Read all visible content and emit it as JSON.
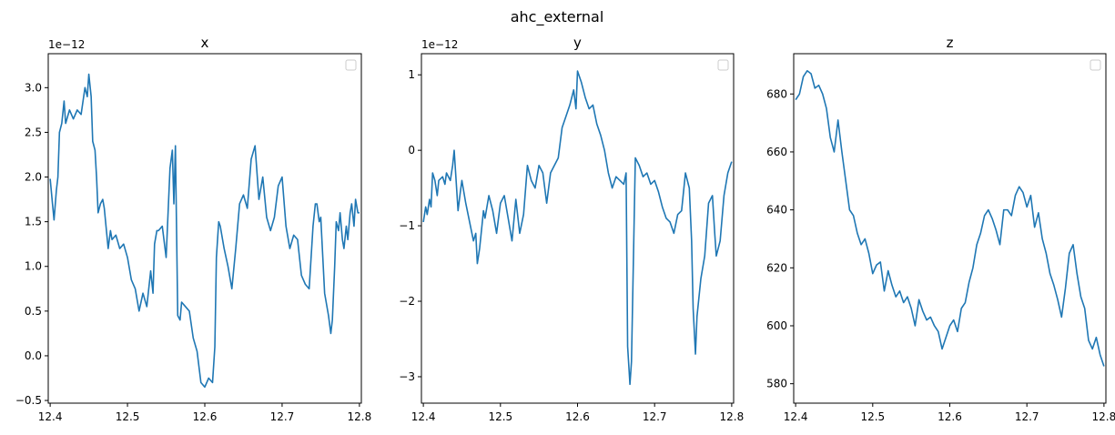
{
  "figure": {
    "suptitle": "ahc_external"
  },
  "colors": {
    "line": "#1f77b4",
    "axes": "#000000",
    "legend_border": "#cccccc"
  },
  "chart_data": [
    {
      "type": "line",
      "title": "x",
      "offset_text": "1e−12",
      "xlim": [
        12.3975,
        12.8025
      ],
      "ylim": [
        -0.53,
        3.38
      ],
      "xticks": [
        12.4,
        12.5,
        12.6,
        12.7,
        12.8
      ],
      "xtick_labels": [
        "12.4",
        "12.5",
        "12.6",
        "12.7",
        "12.8"
      ],
      "yticks": [
        -0.5,
        0.0,
        0.5,
        1.0,
        1.5,
        2.0,
        2.5,
        3.0
      ],
      "ytick_labels": [
        "−0.5",
        "0.0",
        "0.5",
        "1.0",
        "1.5",
        "2.0",
        "2.5",
        "3.0"
      ],
      "legend": "top-right",
      "grid": false,
      "series": [
        {
          "x": [
            12.4,
            12.403,
            12.405,
            12.408,
            12.41,
            12.412,
            12.415,
            12.418,
            12.42,
            12.425,
            12.43,
            12.435,
            12.44,
            12.445,
            12.448,
            12.45,
            12.453,
            12.455,
            12.458,
            12.46,
            12.462,
            12.465,
            12.468,
            12.47,
            12.475,
            12.478,
            12.48,
            12.485,
            12.49,
            12.495,
            12.5,
            12.505,
            12.51,
            12.515,
            12.52,
            12.525,
            12.53,
            12.533,
            12.535,
            12.538,
            12.54,
            12.545,
            12.55,
            12.555,
            12.558,
            12.56,
            12.562,
            12.565,
            12.568,
            12.57,
            12.575,
            12.58,
            12.585,
            12.59,
            12.595,
            12.6,
            12.605,
            12.61,
            12.613,
            12.615,
            12.618,
            12.62,
            12.625,
            12.63,
            12.635,
            12.64,
            12.645,
            12.65,
            12.655,
            12.66,
            12.665,
            12.67,
            12.675,
            12.68,
            12.685,
            12.69,
            12.695,
            12.7,
            12.705,
            12.71,
            12.715,
            12.72,
            12.725,
            12.73,
            12.735,
            12.74,
            12.743,
            12.745,
            12.748,
            12.75,
            12.755,
            12.76,
            12.763,
            12.765,
            12.768,
            12.77,
            12.773,
            12.775,
            12.778,
            12.78,
            12.783,
            12.785,
            12.788,
            12.79,
            12.793,
            12.795,
            12.798,
            12.8
          ],
          "y": [
            1.98,
            1.7,
            1.52,
            1.85,
            2.0,
            2.5,
            2.6,
            2.85,
            2.6,
            2.75,
            2.65,
            2.75,
            2.7,
            3.0,
            2.9,
            3.15,
            2.9,
            2.4,
            2.3,
            2.0,
            1.6,
            1.7,
            1.75,
            1.65,
            1.2,
            1.4,
            1.3,
            1.35,
            1.2,
            1.25,
            1.1,
            0.85,
            0.75,
            0.5,
            0.7,
            0.55,
            0.95,
            0.7,
            1.25,
            1.4,
            1.4,
            1.45,
            1.1,
            2.1,
            2.3,
            1.7,
            2.35,
            0.45,
            0.4,
            0.6,
            0.55,
            0.5,
            0.2,
            0.05,
            -0.3,
            -0.35,
            -0.25,
            -0.3,
            0.1,
            1.1,
            1.5,
            1.45,
            1.2,
            1.0,
            0.75,
            1.2,
            1.7,
            1.8,
            1.65,
            2.2,
            2.35,
            1.75,
            2.0,
            1.55,
            1.4,
            1.55,
            1.9,
            2.0,
            1.45,
            1.2,
            1.35,
            1.3,
            0.9,
            0.8,
            0.75,
            1.45,
            1.7,
            1.7,
            1.5,
            1.55,
            0.7,
            0.45,
            0.25,
            0.4,
            1.0,
            1.5,
            1.4,
            1.6,
            1.3,
            1.2,
            1.45,
            1.3,
            1.6,
            1.7,
            1.45,
            1.75,
            1.6,
            1.6
          ]
        }
      ]
    },
    {
      "type": "line",
      "title": "y",
      "offset_text": "1e−12",
      "xlim": [
        12.3975,
        12.8025
      ],
      "ylim": [
        -3.35,
        1.28
      ],
      "xticks": [
        12.4,
        12.5,
        12.6,
        12.7,
        12.8
      ],
      "xtick_labels": [
        "12.4",
        "12.5",
        "12.6",
        "12.7",
        "12.8"
      ],
      "yticks": [
        -3,
        -2,
        -1,
        0,
        1
      ],
      "ytick_labels": [
        "−3",
        "−2",
        "−1",
        "0",
        "1"
      ],
      "legend": "top-right",
      "grid": false,
      "series": [
        {
          "x": [
            12.4,
            12.403,
            12.405,
            12.408,
            12.41,
            12.412,
            12.415,
            12.418,
            12.42,
            12.425,
            12.428,
            12.43,
            12.435,
            12.438,
            12.44,
            12.445,
            12.448,
            12.45,
            12.455,
            12.46,
            12.465,
            12.468,
            12.47,
            12.473,
            12.475,
            12.478,
            12.48,
            12.485,
            12.49,
            12.495,
            12.5,
            12.505,
            12.51,
            12.515,
            12.52,
            12.525,
            12.53,
            12.535,
            12.54,
            12.545,
            12.55,
            12.555,
            12.56,
            12.565,
            12.57,
            12.575,
            12.58,
            12.585,
            12.59,
            12.595,
            12.598,
            12.6,
            12.605,
            12.61,
            12.615,
            12.62,
            12.625,
            12.63,
            12.635,
            12.64,
            12.645,
            12.65,
            12.655,
            12.66,
            12.663,
            12.665,
            12.668,
            12.67,
            12.675,
            12.68,
            12.685,
            12.69,
            12.695,
            12.7,
            12.705,
            12.71,
            12.715,
            12.72,
            12.725,
            12.73,
            12.735,
            12.74,
            12.745,
            12.748,
            12.75,
            12.753,
            12.755,
            12.76,
            12.765,
            12.77,
            12.775,
            12.778,
            12.78,
            12.785,
            12.79,
            12.795,
            12.8
          ],
          "y": [
            -0.95,
            -0.75,
            -0.85,
            -0.65,
            -0.75,
            -0.3,
            -0.4,
            -0.6,
            -0.4,
            -0.35,
            -0.45,
            -0.3,
            -0.4,
            -0.2,
            0.0,
            -0.8,
            -0.55,
            -0.4,
            -0.7,
            -0.95,
            -1.2,
            -1.1,
            -1.5,
            -1.3,
            -1.1,
            -0.8,
            -0.9,
            -0.6,
            -0.8,
            -1.1,
            -0.7,
            -0.6,
            -0.9,
            -1.2,
            -0.65,
            -1.1,
            -0.85,
            -0.2,
            -0.4,
            -0.5,
            -0.2,
            -0.3,
            -0.7,
            -0.3,
            -0.2,
            -0.1,
            0.3,
            0.45,
            0.6,
            0.8,
            0.55,
            1.05,
            0.9,
            0.7,
            0.55,
            0.6,
            0.35,
            0.2,
            0.0,
            -0.3,
            -0.5,
            -0.35,
            -0.4,
            -0.45,
            -0.3,
            -2.6,
            -3.1,
            -2.8,
            -0.1,
            -0.2,
            -0.35,
            -0.3,
            -0.45,
            -0.4,
            -0.55,
            -0.75,
            -0.9,
            -0.95,
            -1.1,
            -0.85,
            -0.8,
            -0.3,
            -0.5,
            -1.2,
            -2.1,
            -2.7,
            -2.2,
            -1.7,
            -1.4,
            -0.7,
            -0.6,
            -1.1,
            -1.4,
            -1.2,
            -0.6,
            -0.3,
            -0.15
          ]
        }
      ]
    },
    {
      "type": "line",
      "title": "z",
      "offset_text": "",
      "xlim": [
        12.3975,
        12.8025
      ],
      "ylim": [
        573.3,
        693.9
      ],
      "xticks": [
        12.4,
        12.5,
        12.6,
        12.7,
        12.8
      ],
      "xtick_labels": [
        "12.4",
        "12.5",
        "12.6",
        "12.7",
        "12.8"
      ],
      "yticks": [
        580,
        600,
        620,
        640,
        660,
        680
      ],
      "ytick_labels": [
        "580",
        "600",
        "620",
        "640",
        "660",
        "680"
      ],
      "legend": "top-right",
      "grid": false,
      "series": [
        {
          "x": [
            12.4,
            12.405,
            12.41,
            12.415,
            12.42,
            12.425,
            12.43,
            12.435,
            12.44,
            12.445,
            12.45,
            12.455,
            12.46,
            12.465,
            12.47,
            12.475,
            12.48,
            12.485,
            12.49,
            12.495,
            12.5,
            12.505,
            12.51,
            12.515,
            12.52,
            12.525,
            12.53,
            12.535,
            12.54,
            12.545,
            12.55,
            12.555,
            12.56,
            12.565,
            12.57,
            12.575,
            12.58,
            12.585,
            12.59,
            12.595,
            12.6,
            12.605,
            12.61,
            12.615,
            12.62,
            12.625,
            12.63,
            12.635,
            12.64,
            12.645,
            12.65,
            12.655,
            12.66,
            12.665,
            12.67,
            12.675,
            12.68,
            12.685,
            12.69,
            12.695,
            12.7,
            12.705,
            12.71,
            12.715,
            12.72,
            12.725,
            12.73,
            12.735,
            12.74,
            12.745,
            12.75,
            12.755,
            12.76,
            12.765,
            12.77,
            12.775,
            12.78,
            12.785,
            12.79,
            12.795,
            12.8
          ],
          "y": [
            678,
            680,
            686,
            688,
            687,
            682,
            683,
            680,
            675,
            665,
            660,
            671,
            660,
            650,
            640,
            638,
            632,
            628,
            630,
            625,
            618,
            621,
            622,
            612,
            619,
            614,
            610,
            612,
            608,
            610,
            606,
            600,
            609,
            605,
            602,
            603,
            600,
            598,
            592,
            596,
            600,
            602,
            598,
            606,
            608,
            615,
            620,
            628,
            632,
            638,
            640,
            637,
            633,
            628,
            640,
            640,
            638,
            645,
            648,
            646,
            641,
            645,
            634,
            639,
            630,
            625,
            618,
            614,
            609,
            603,
            613,
            625,
            628,
            618,
            610,
            606,
            595,
            592,
            596,
            590,
            586
          ]
        }
      ]
    }
  ]
}
